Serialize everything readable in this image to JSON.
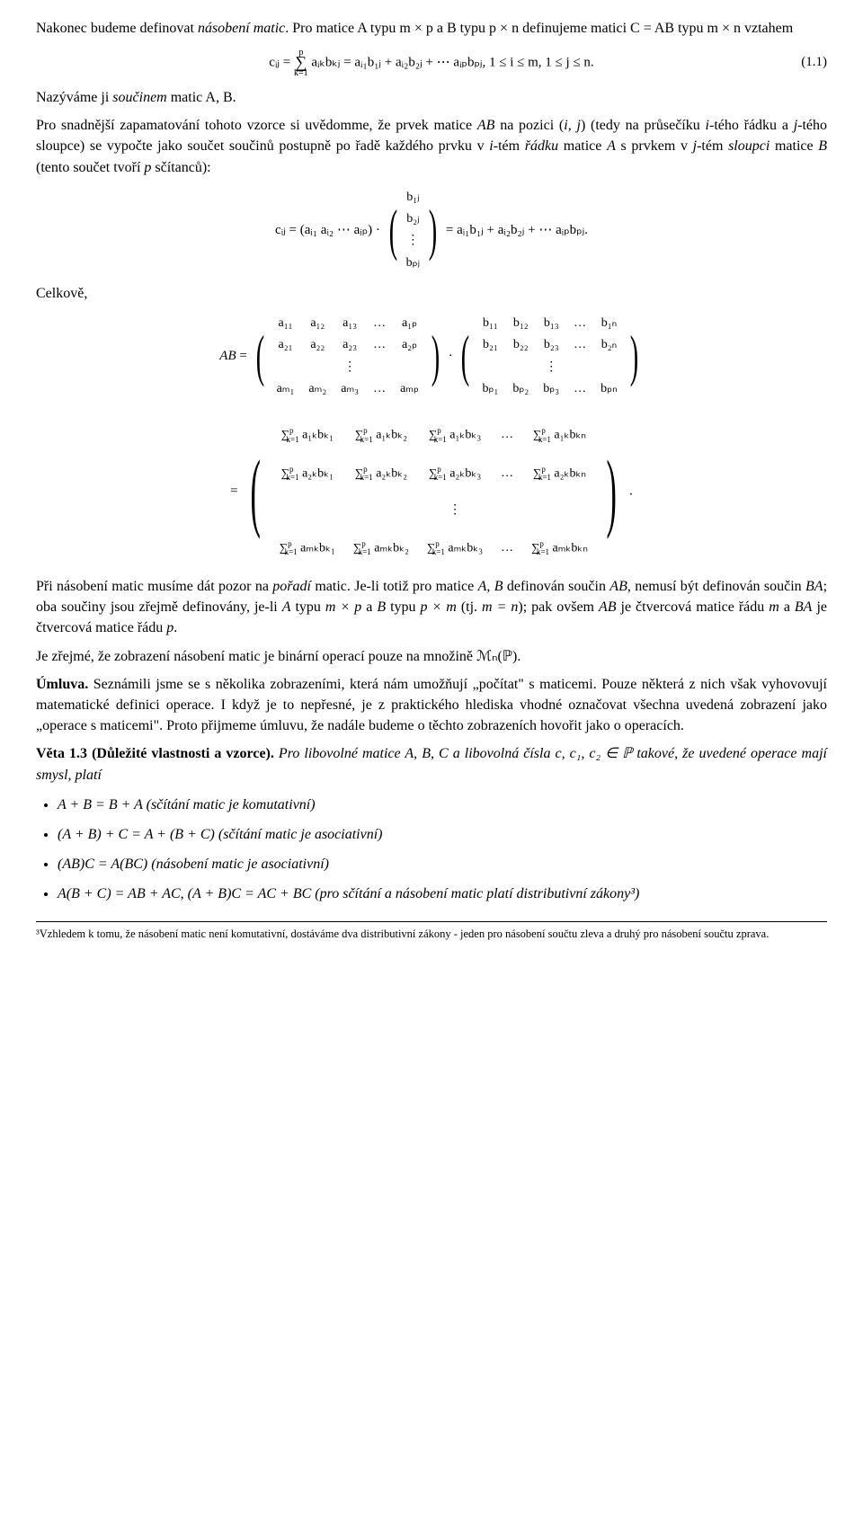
{
  "intro": {
    "line1_a": "Nakonec budeme definovat ",
    "line1_b": "násobení matic",
    "line1_c": ". Pro matice A typu m × p a B typu p × n definujeme matici C = AB typu m × n vztahem",
    "eq1_lhs": "cᵢⱼ = ",
    "eq1_sum_top": "p",
    "eq1_sum_bot": "k=1",
    "eq1_body": " aᵢₖbₖⱼ = aᵢ₁b₁ⱼ + aᵢ₂b₂ⱼ + ⋯ aᵢₚbₚⱼ,    1 ≤ i ≤ m, 1 ≤ j ≤ n.",
    "eq1_num": "(1.1)",
    "line2_a": "Nazýváme ji ",
    "line2_b": "součinem",
    "line2_c": " matic A, B."
  },
  "para2": "Pro snadnější zapamatování tohoto vzorce si uvědomme, že prvek matice AB na pozici (i, j) (tedy na průsečíku i-tého řádku a j-tého sloupce) se vypočte jako součet součinů postupně po řadě každého prvku v i-tém řádku matice A s prvkem v j-tém sloupci matice B (tento součet tvoří p sčítanců):",
  "eq2": {
    "row": "cᵢⱼ = (aᵢ₁  aᵢ₂  ⋯  aᵢₚ) · ",
    "col": [
      "b₁ⱼ",
      "b₂ⱼ",
      "⋮",
      "bₚⱼ"
    ],
    "rhs": " = aᵢ₁b₁ⱼ + aᵢ₂b₂ⱼ + ⋯ aᵢₚbₚⱼ."
  },
  "celkove": "Celkově,",
  "matA": [
    [
      "a₁₁",
      "a₁₂",
      "a₁₃",
      "…",
      "a₁ₚ"
    ],
    [
      "a₂₁",
      "a₂₂",
      "a₂₃",
      "…",
      "a₂ₚ"
    ],
    [
      "",
      "",
      "⋮",
      "",
      ""
    ],
    [
      "aₘ₁",
      "aₘ₂",
      "aₘ₃",
      "…",
      "aₘₚ"
    ]
  ],
  "matB": [
    [
      "b₁₁",
      "b₁₂",
      "b₁₃",
      "…",
      "b₁ₙ"
    ],
    [
      "b₂₁",
      "b₂₂",
      "b₂₃",
      "…",
      "b₂ₙ"
    ],
    [
      "",
      "",
      "⋮",
      "",
      ""
    ],
    [
      "bₚ₁",
      "bₚ₂",
      "bₚ₃",
      "…",
      "bₚₙ"
    ]
  ],
  "bigmat": {
    "sumprefix_top": "p",
    "sumprefix_bot": "k=1",
    "rows": [
      [
        "a₁ₖbₖ₁",
        "a₁ₖbₖ₂",
        "a₁ₖbₖ₃",
        "…",
        "a₁ₖbₖₙ"
      ],
      [
        "a₂ₖbₖ₁",
        "a₂ₖbₖ₂",
        "a₂ₖbₖ₃",
        "…",
        "a₂ₖbₖₙ"
      ],
      [
        "",
        "",
        "⋮",
        "",
        ""
      ],
      [
        "aₘₖbₖ₁",
        "aₘₖbₖ₂",
        "aₘₖbₖ₃",
        "…",
        "aₘₖbₖₙ"
      ]
    ]
  },
  "para3": "Při násobení matic musíme dát pozor na pořadí matic. Je-li totiž pro matice A, B definován součin AB, nemusí být definován součin BA; oba součiny jsou zřejmě definovány, je-li A typu m × p a B typu p × m (tj. m = n); pak ovšem AB je čtvercová matice řádu m a BA je čtvercová matice řádu p.",
  "para4": "Je zřejmé, že zobrazení násobení matic je binární operací pouze na množině ℳₙ(ℙ).",
  "umluva_h": "Úmluva.",
  "umluva": " Seznámili jsme se s několika zobrazeními, která nám umožňují „počítat\" s maticemi. Pouze některá z nich však vyhovovují matematické definici operace. I když je to nepřesné, je z praktického hlediska vhodné označovat všechna uvedená zobrazení jako „operace s maticemi\". Proto přijmeme úmluvu, že nadále budeme o těchto zobrazeních hovořit jako o operacích.",
  "veta_h": "Věta 1.3 (Důležité vlastnosti a vzorce).",
  "veta": " Pro libovolné matice A, B, C a libovolná čísla c, c₁, c₂ ∈ ℙ takové, že uvedené operace mají smysl, platí",
  "props": [
    "A + B = B + A  (sčítání matic je komutativní)",
    "(A + B) + C = A + (B + C)  (sčítání matic je asociativní)",
    "(AB)C = A(BC)  (násobení matic je asociativní)",
    "A(B + C) = AB + AC, (A + B)C = AC + BC  (pro sčítání a násobení matic platí distributivní zákony³)"
  ],
  "footnote": "³Vzhledem k tomu, že násobení matic není komutativní, dostáváme dva distributivní zákony - jeden pro násobení součtu zleva a druhý pro násobení součtu zprava."
}
